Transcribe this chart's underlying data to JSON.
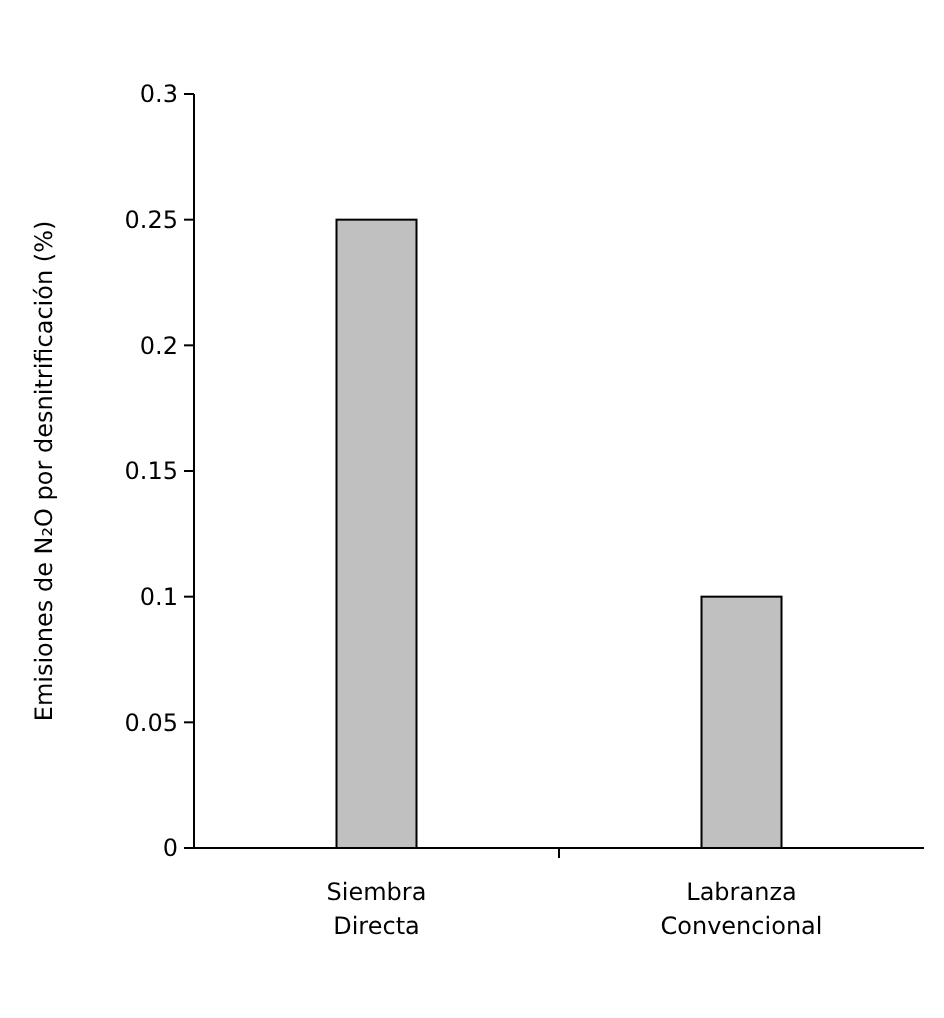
{
  "chart_data": {
    "type": "bar",
    "ylabel": "Emisiones de N₂O por desnitrificación (%)",
    "categories": [
      "Siembra Directa",
      "Labranza Convencional"
    ],
    "values": [
      0.25,
      0.1
    ],
    "color": "#c0c0c0",
    "ylim": [
      0,
      0.3
    ],
    "yticks": [
      0,
      0.05,
      0.1,
      0.15,
      0.2,
      0.25,
      0.3
    ],
    "grid": false
  }
}
